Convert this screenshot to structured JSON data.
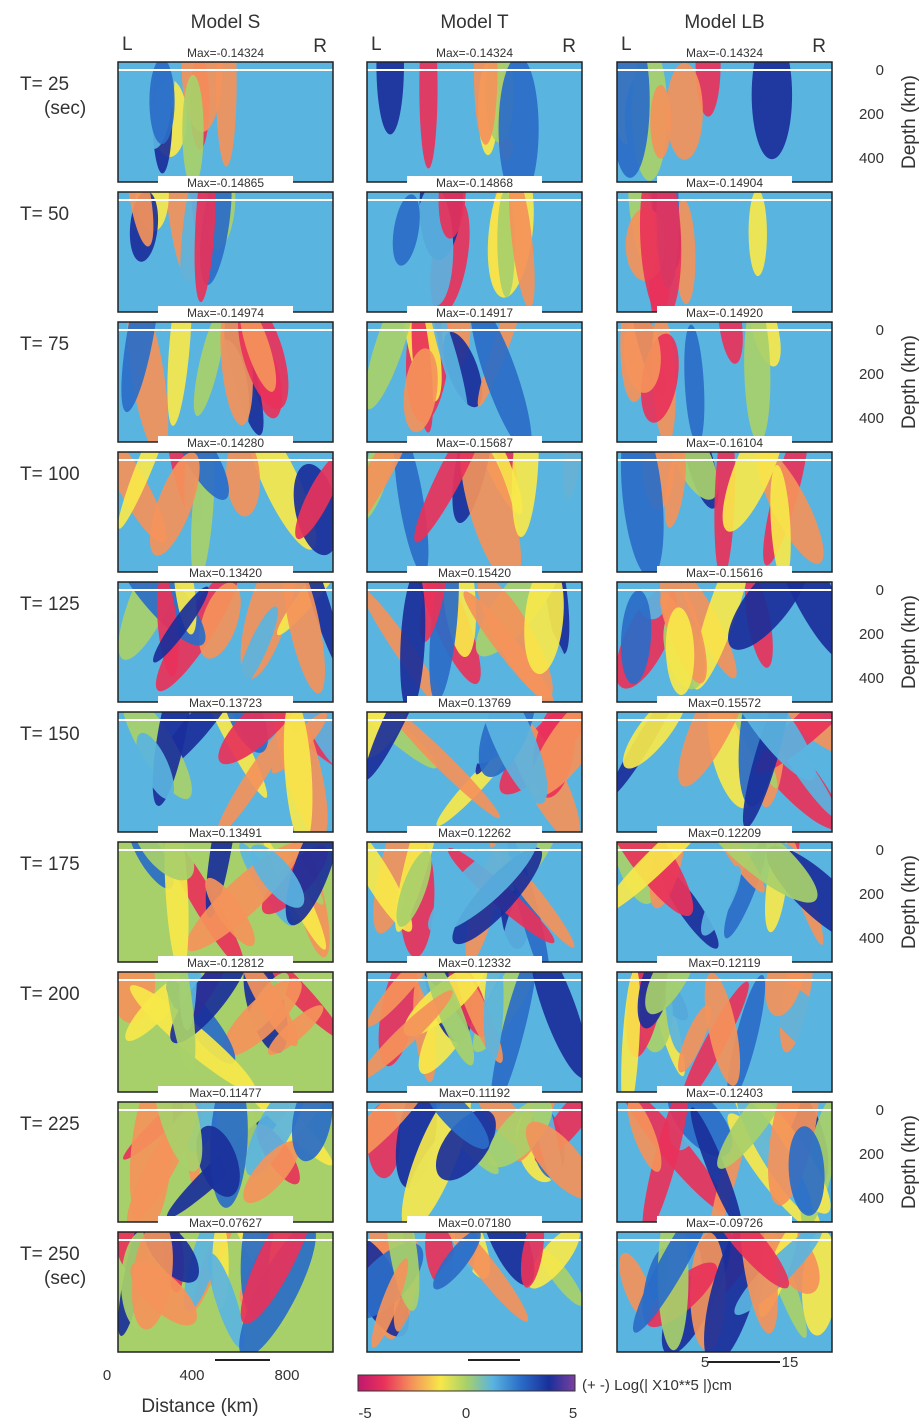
{
  "columns": [
    {
      "title": "Model S",
      "left": "L",
      "right": "R"
    },
    {
      "title": "Model T",
      "left": "L",
      "right": "R"
    },
    {
      "title": "Model LB",
      "left": "L",
      "right": "R"
    }
  ],
  "rows": [
    {
      "label": "T= 25",
      "sublabel": "(sec)",
      "max": [
        "Max=-0.14324",
        "Max=-0.14324",
        "Max=-0.14324"
      ]
    },
    {
      "label": "T= 50",
      "max": [
        "Max=-0.14865",
        "Max=-0.14868",
        "Max=-0.14904"
      ]
    },
    {
      "label": "T= 75",
      "max": [
        "Max=-0.14974",
        "Max=-0.14917",
        "Max=-0.14920"
      ]
    },
    {
      "label": "T= 100",
      "max": [
        "Max=-0.14280",
        "Max=-0.15687",
        "Max=-0.16104"
      ]
    },
    {
      "label": "T= 125",
      "max": [
        "Max=0.13420",
        "Max=0.15420",
        "Max=-0.15616"
      ]
    },
    {
      "label": "T= 150",
      "max": [
        "Max=0.13723",
        "Max=0.13769",
        "Max=0.15572"
      ]
    },
    {
      "label": "T= 175",
      "max": [
        "Max=0.13491",
        "Max=0.12262",
        "Max=0.12209"
      ]
    },
    {
      "label": "T= 200",
      "max": [
        "Max=-0.12812",
        "Max=0.12332",
        "Max=0.12119"
      ]
    },
    {
      "label": "T= 225",
      "max": [
        "Max=0.11477",
        "Max=0.11192",
        "Max=-0.12403"
      ]
    },
    {
      "label": "T= 250",
      "sublabel": "(sec)",
      "max": [
        "Max=0.07627",
        "Max=0.07180",
        "Max=-0.09726"
      ]
    }
  ],
  "depth_axis": {
    "ticks": [
      "0",
      "200",
      "400"
    ],
    "label": "Depth (km)"
  },
  "distance_axis": {
    "ticks": [
      "0",
      "400",
      "800"
    ],
    "label": "Distance (km)"
  },
  "scale_labels": [
    "5",
    "15"
  ],
  "colorbar": {
    "ticks": [
      "-5",
      "0",
      "5"
    ],
    "label": "(+ -) Log(| X10**5 |)cm"
  }
}
